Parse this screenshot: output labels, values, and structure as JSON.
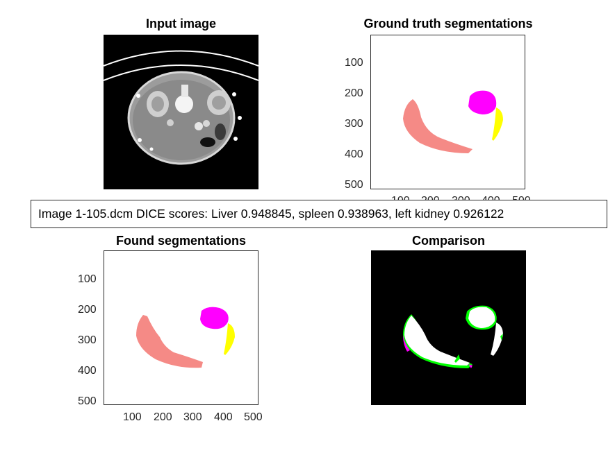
{
  "panels": {
    "input": {
      "title": "Input image"
    },
    "ground_truth": {
      "title": "Ground truth segmentations",
      "yticks": [
        "100",
        "200",
        "300",
        "400",
        "500"
      ],
      "xticks": [
        "100",
        "200",
        "300",
        "400",
        "500"
      ]
    },
    "found": {
      "title": "Found segmentations",
      "yticks": [
        "100",
        "200",
        "300",
        "400",
        "500"
      ],
      "xticks": [
        "100",
        "200",
        "300",
        "400",
        "500"
      ]
    },
    "comparison": {
      "title": "Comparison"
    }
  },
  "caption": "Image 1-105.dcm DICE scores: Liver 0.948845, spleen 0.938963, left kidney 0.926122",
  "colors": {
    "liver": "#f58a86",
    "spleen": "#ff00ff",
    "left_kidney": "#ffff00",
    "overlap": "#ffffff",
    "extra": "#00ff00",
    "missed": "#ff00ff"
  }
}
